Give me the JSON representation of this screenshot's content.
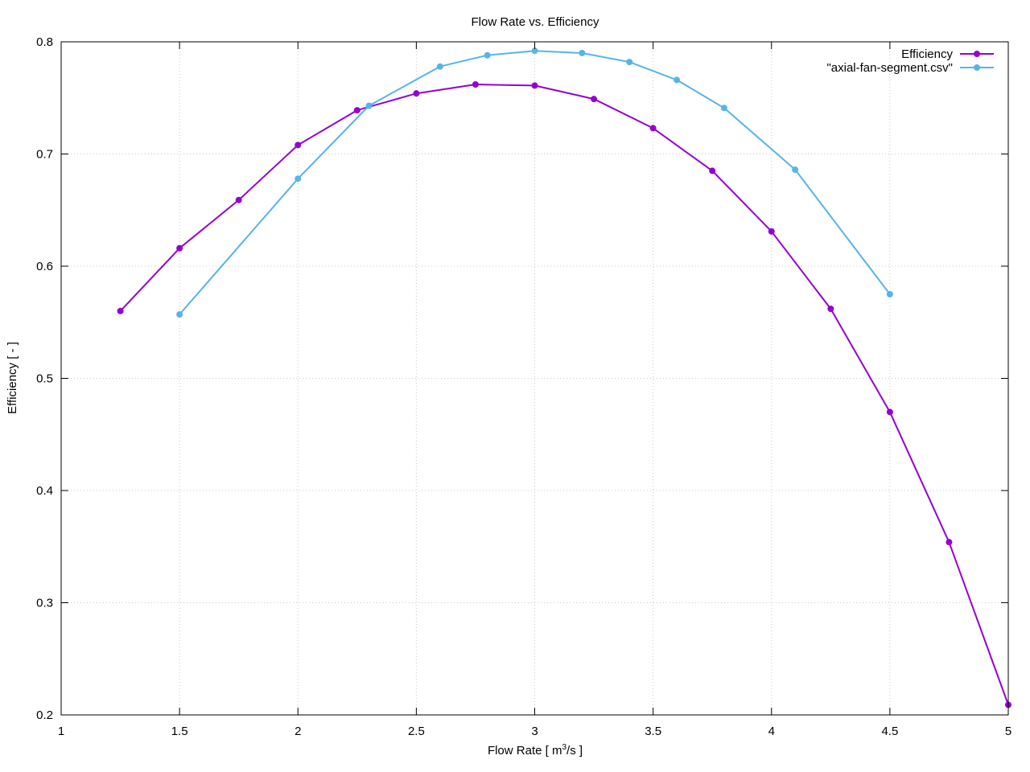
{
  "chart_data": {
    "type": "line",
    "title": "Flow Rate  vs. Efficiency",
    "xlabel_main": "Flow Rate [ m",
    "xlabel_sup": "3",
    "xlabel_end": "/s ]",
    "ylabel": "Efficiency [ - ]",
    "xlim": [
      1,
      5
    ],
    "ylim": [
      0.2,
      0.8
    ],
    "x_ticks": [
      1,
      1.5,
      2,
      2.5,
      3,
      3.5,
      4,
      4.5,
      5
    ],
    "x_tick_labels": [
      "1",
      "1.5",
      "2",
      "2.5",
      "3",
      "3.5",
      "4",
      "4.5",
      "5"
    ],
    "y_ticks": [
      0.2,
      0.3,
      0.4,
      0.5,
      0.6,
      0.7,
      0.8
    ],
    "y_tick_labels": [
      "0.2",
      "0.3",
      "0.4",
      "0.5",
      "0.6",
      "0.7",
      "0.8"
    ],
    "grid": true,
    "legend_position": "top-right",
    "series": [
      {
        "name": "Efficiency",
        "color": "#9400d3",
        "x": [
          1.25,
          1.5,
          1.75,
          2.0,
          2.25,
          2.5,
          2.75,
          3.0,
          3.25,
          3.5,
          3.75,
          4.0,
          4.25,
          4.5,
          4.75,
          5.0
        ],
        "y": [
          0.56,
          0.616,
          0.659,
          0.708,
          0.739,
          0.754,
          0.762,
          0.761,
          0.749,
          0.723,
          0.685,
          0.631,
          0.562,
          0.47,
          0.354,
          0.209
        ]
      },
      {
        "name": "\"axial-fan-segment.csv\"",
        "color": "#56b4e9",
        "x": [
          1.5,
          2.0,
          2.3,
          2.6,
          2.8,
          3.0,
          3.2,
          3.4,
          3.6,
          3.8,
          4.1,
          4.5
        ],
        "y": [
          0.557,
          0.678,
          0.743,
          0.778,
          0.788,
          0.792,
          0.79,
          0.782,
          0.766,
          0.741,
          0.686,
          0.575
        ]
      }
    ]
  }
}
